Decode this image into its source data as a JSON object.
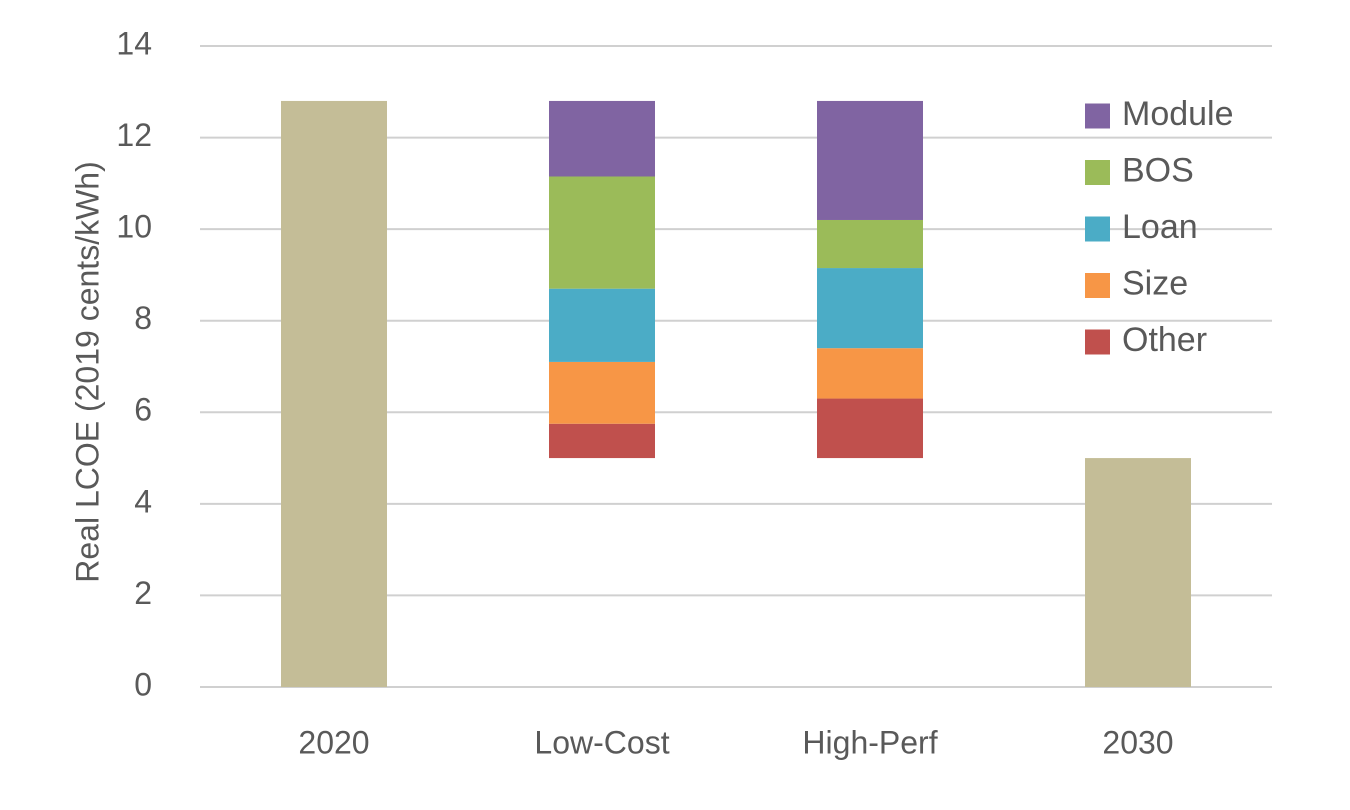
{
  "chart_data": {
    "type": "bar",
    "stacked": true,
    "ylabel": "Real LCOE (2019 cents/kWh)",
    "ylim": [
      0,
      14
    ],
    "yticks": [
      0,
      2,
      4,
      6,
      8,
      10,
      12,
      14
    ],
    "grid": true,
    "legend_position": "top-right",
    "categories": [
      "2020",
      "Low-Cost",
      "High-Perf",
      "2030"
    ],
    "totals": [
      {
        "category": "2020",
        "value": 12.8,
        "color": "#c4bd97"
      },
      {
        "category": "2030",
        "value": 5.0,
        "color": "#c4bd97"
      }
    ],
    "waterfall_base": 5.0,
    "series": [
      {
        "name": "Other",
        "color": "#c0504d",
        "values": [
          null,
          0.75,
          1.3,
          null
        ]
      },
      {
        "name": "Size",
        "color": "#f79646",
        "values": [
          null,
          1.35,
          1.1,
          null
        ]
      },
      {
        "name": "Loan",
        "color": "#4bacc6",
        "values": [
          null,
          1.6,
          1.75,
          null
        ]
      },
      {
        "name": "BOS",
        "color": "#9bbb59",
        "values": [
          null,
          2.45,
          1.05,
          null
        ]
      },
      {
        "name": "Module",
        "color": "#8064a2",
        "values": [
          null,
          1.65,
          2.6,
          null
        ]
      }
    ],
    "legend_order": [
      "Module",
      "BOS",
      "Loan",
      "Size",
      "Other"
    ]
  }
}
